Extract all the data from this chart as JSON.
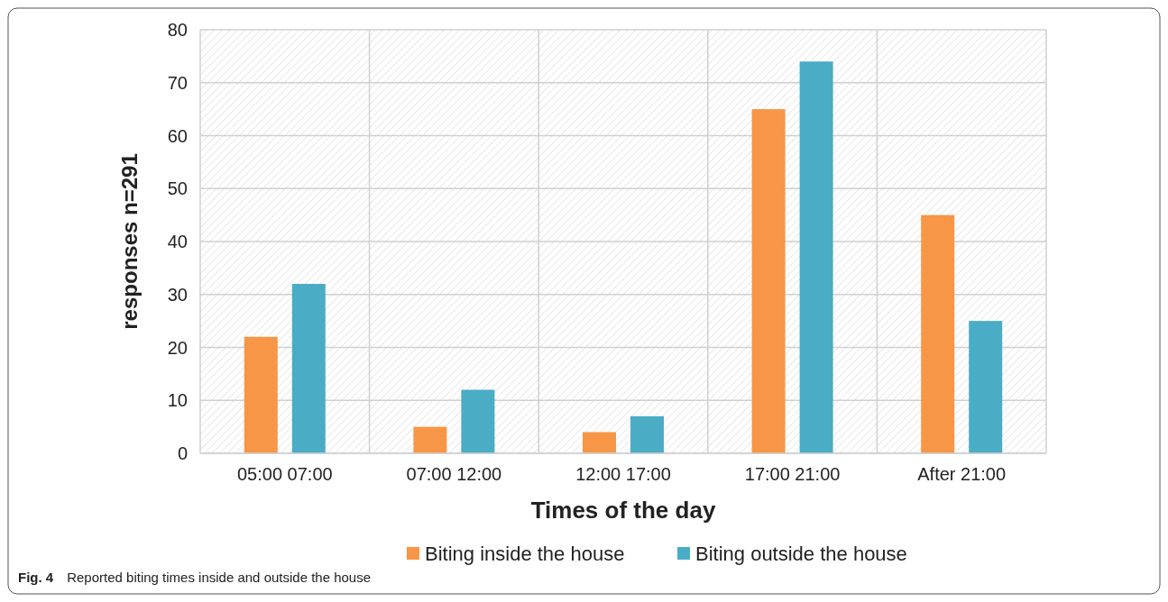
{
  "chart_data": {
    "type": "bar",
    "xlabel": "Times of the day",
    "ylabel": "responses n=291",
    "categories": [
      "05:00 07:00",
      "07:00 12:00",
      "12:00 17:00",
      "17:00 21:00",
      "After 21:00"
    ],
    "series": [
      {
        "name": "Biting inside the house",
        "color": "#f79646",
        "values": [
          22,
          5,
          4,
          65,
          45
        ]
      },
      {
        "name": "Biting outside the house",
        "color": "#4bacc6",
        "values": [
          32,
          12,
          7,
          74,
          25
        ]
      }
    ],
    "ylim": [
      0,
      80
    ],
    "yticks": [
      0,
      10,
      20,
      30,
      40,
      50,
      60,
      70,
      80
    ],
    "grid": true,
    "legend": "bottom",
    "annotations": [
      "Fig. 4 Reported biting times inside and outside the house"
    ]
  }
}
